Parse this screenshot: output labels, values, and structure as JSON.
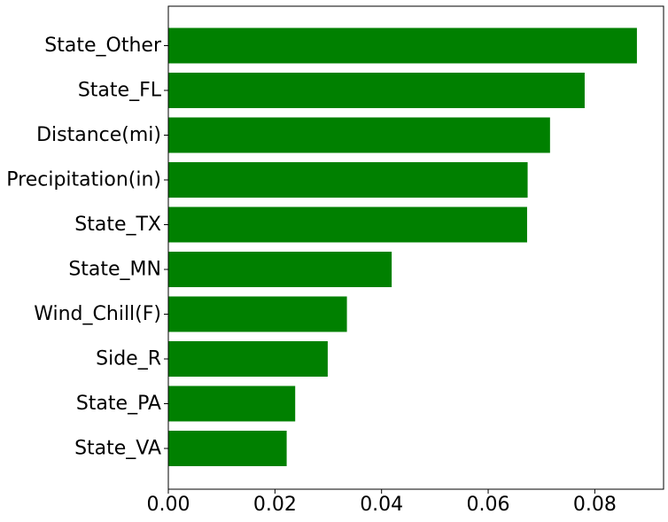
{
  "chart_data": {
    "type": "bar",
    "orientation": "horizontal",
    "categories": [
      "State_Other",
      "State_FL",
      "Distance(mi)",
      "Precipitation(in)",
      "State_TX",
      "State_MN",
      "Wind_Chill(F)",
      "Side_R",
      "State_PA",
      "State_VA"
    ],
    "values": [
      0.0879,
      0.0781,
      0.0716,
      0.0674,
      0.0673,
      0.0419,
      0.0335,
      0.0299,
      0.0238,
      0.0222
    ],
    "xlim": [
      0,
      0.0929
    ],
    "xticks": [
      0.0,
      0.02,
      0.04,
      0.06,
      0.08
    ],
    "xtick_labels": [
      "0.00",
      "0.02",
      "0.04",
      "0.06",
      "0.08"
    ],
    "bar_color": "#008000",
    "grid": false,
    "legend": "none"
  }
}
